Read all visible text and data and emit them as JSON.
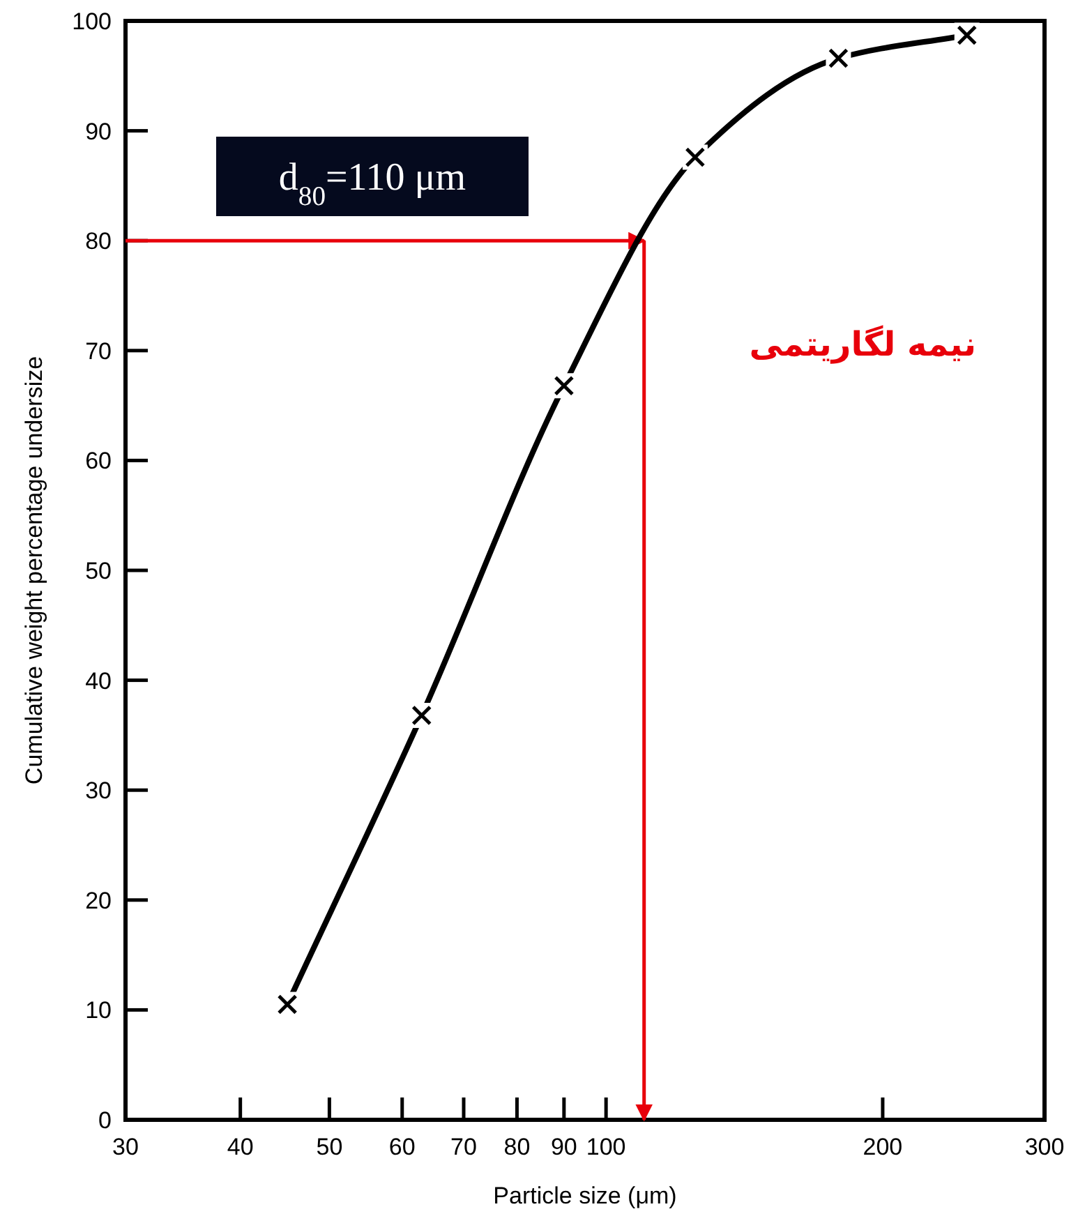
{
  "chart_data": {
    "type": "line",
    "xlabel": "Particle size (μm)",
    "ylabel": "Cumulative weight percentage undersize",
    "x": [
      45,
      63,
      90,
      125,
      179,
      247
    ],
    "series": [
      {
        "color": "#000000",
        "values": [
          10.5,
          36.8,
          66.8,
          87.6,
          96.6,
          98.7
        ]
      }
    ],
    "log": "x",
    "xlim": [
      30,
      300
    ],
    "ylim": [
      0,
      100
    ],
    "xticks": [
      30,
      40,
      50,
      60,
      70,
      80,
      90,
      100,
      200,
      300
    ],
    "yticks": [
      0,
      10,
      20,
      30,
      40,
      50,
      60,
      70,
      80,
      90,
      100
    ],
    "grid": false,
    "marker": "cross",
    "line_style": "solid",
    "ref_lines": [
      {
        "axis": "y",
        "value": 80,
        "color": "#e8000b"
      },
      {
        "axis": "x",
        "value": 110,
        "color": "#e8000b"
      }
    ],
    "annotations": [
      "d$_{80}$=110 μm",
      "نیمه لگاریتمی"
    ]
  }
}
